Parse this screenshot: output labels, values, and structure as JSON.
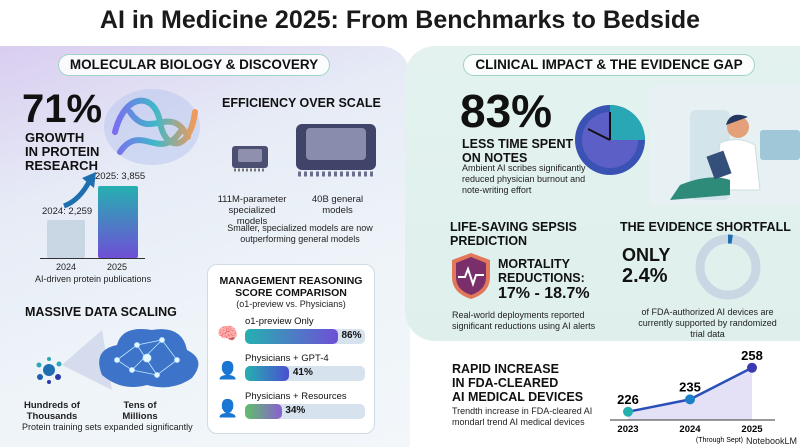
{
  "title": "AI in Medicine 2025: From Benchmarks to Bedside",
  "left": {
    "section_label": "MOLECULAR BIOLOGY & DISCOVERY",
    "growth": {
      "value": "71%",
      "lines": [
        "GROWTH",
        "IN PROTEIN",
        "RESEARCH"
      ]
    },
    "publications": {
      "bars": [
        {
          "year": "2024",
          "label": "2024: 2,259",
          "value": 2259,
          "color": "#c9d6e3"
        },
        {
          "year": "2025",
          "label": "2025: 3,855",
          "value": 3855,
          "color": "#2aa7b4"
        }
      ],
      "caption": "AI-driven protein publications"
    },
    "efficiency": {
      "heading": "EFFICIENCY OVER SCALE",
      "small_label": [
        "111M-parameter",
        "specialized models"
      ],
      "large_label": [
        "40B general",
        "models"
      ],
      "caption": [
        "Smaller, specialized models are now",
        "outperforming general models"
      ]
    },
    "data_scaling": {
      "heading": "MASSIVE DATA SCALING",
      "from_label": [
        "Hundreds of",
        "Thousands"
      ],
      "to_label": [
        "Tens of",
        "Millions"
      ],
      "caption": "Protein training sets expanded significantly"
    },
    "reasoning": {
      "heading": [
        "MANAGEMENT REASONING",
        "SCORE COMPARISON"
      ],
      "subtitle": "(o1-preview vs. Physicians)",
      "rows": [
        {
          "label": "o1-preview Only",
          "value": 86,
          "display": "86%",
          "icon": "brain-icon"
        },
        {
          "label": "Physicians + GPT-4",
          "value": 41,
          "display": "41%",
          "icon": "physician-icon"
        },
        {
          "label": "Physicians + Resources",
          "value": 34,
          "display": "34%",
          "icon": "physician-female-icon"
        }
      ]
    }
  },
  "right": {
    "section_label": "CLINICAL IMPACT & THE EVIDENCE GAP",
    "notes": {
      "value": "83%",
      "lines": [
        "LESS TIME SPENT",
        "ON NOTES"
      ],
      "desc": [
        "Ambient AI scribes significantly",
        "reduced physician burnout and",
        "note-writing effort"
      ]
    },
    "sepsis": {
      "heading": [
        "LIFE-SAVING SEPSIS",
        "PREDICTION"
      ],
      "label": [
        "MORTALITY",
        "REDUCTIONS:"
      ],
      "value": "17% - 18.7%",
      "desc": [
        "Real-world deployments reported",
        "significant reductions using AI alerts"
      ]
    },
    "evidence": {
      "heading": "THE EVIDENCE SHORTFALL",
      "only": "ONLY",
      "value": "2.4%",
      "fraction": 0.024,
      "desc": [
        "of FDA-authorized AI devices are",
        "currently supported by randomized",
        "trial data"
      ]
    },
    "fda": {
      "heading": [
        "RAPID INCREASE",
        "IN FDA-CLEARED",
        "AI MEDICAL DEVICES"
      ],
      "desc": [
        "Trendth increase in FDA-cleared AI",
        "mondarl trend AI medical devices"
      ]
    }
  },
  "chart_data": {
    "type": "line",
    "categories": [
      "2023",
      "2024",
      "2025"
    ],
    "values": [
      226,
      235,
      258
    ],
    "data_labels": [
      "226",
      "235",
      "258"
    ],
    "note": "(Through Sept)"
  },
  "watermark": "NotebookLM",
  "colors": {
    "teal": "#2aa7b4",
    "purple": "#6a4fd0",
    "navy": "#2b3aa8"
  }
}
